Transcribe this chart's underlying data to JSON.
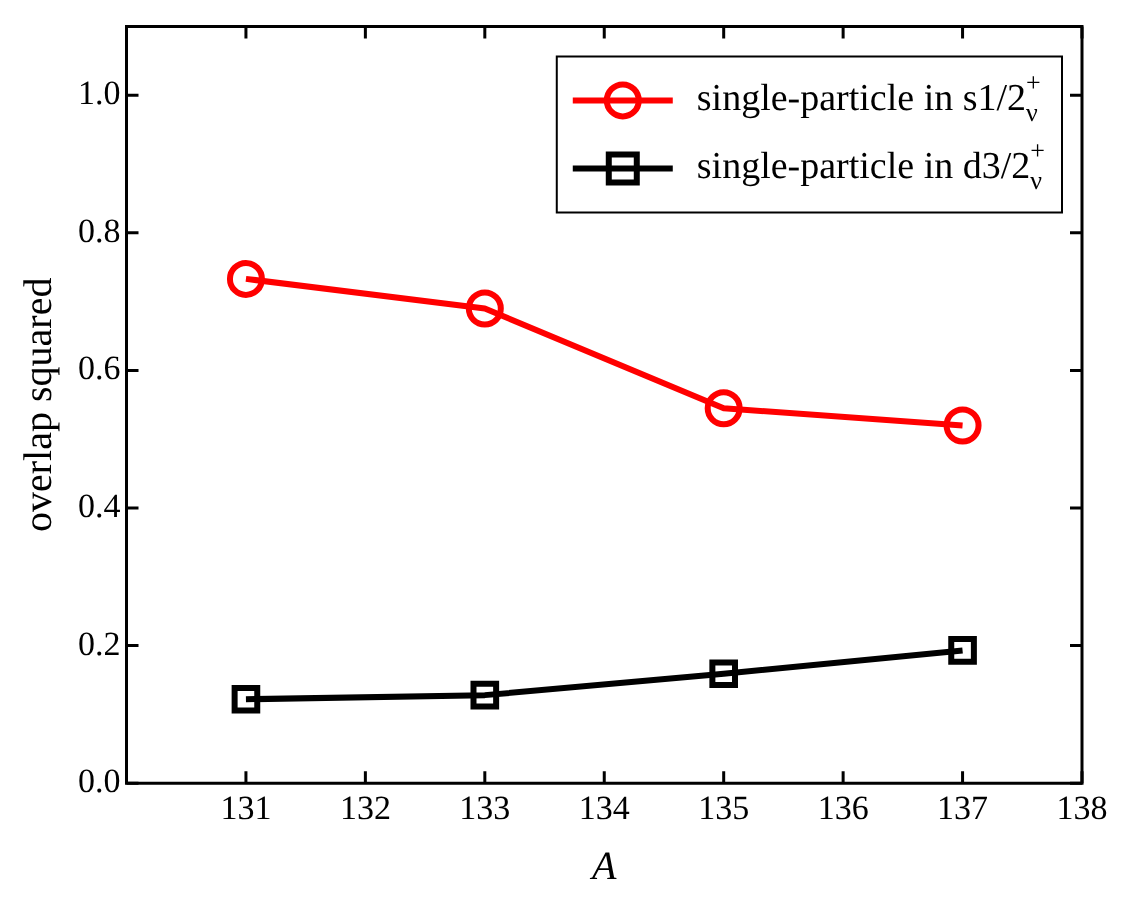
{
  "chart_data": {
    "type": "line",
    "xlabel": "A",
    "ylabel": "overlap squared",
    "x": [
      131,
      133,
      135,
      137
    ],
    "series": [
      {
        "name": "single-particle in s1/2$^{+}$$_{ν}$",
        "color": "#ff0000",
        "marker": "circle",
        "values": [
          0.733,
          0.69,
          0.545,
          0.52
        ]
      },
      {
        "name": "single-particle in d3/2$^{+}$$_{ν}$",
        "color": "#000000",
        "marker": "square",
        "values": [
          0.122,
          0.128,
          0.159,
          0.193
        ]
      }
    ],
    "xlim": [
      130,
      138
    ],
    "xticks": [
      131,
      132,
      133,
      134,
      135,
      136,
      137,
      138
    ],
    "ylim": [
      0,
      1.1
    ],
    "yticks": [
      {
        "value": 0,
        "label": "0.0"
      },
      0.2,
      0.4,
      0.6,
      0.8,
      {
        "value": 1,
        "label": "1.0"
      }
    ],
    "grid": false,
    "legend": "top right",
    "line_style": "solid"
  }
}
